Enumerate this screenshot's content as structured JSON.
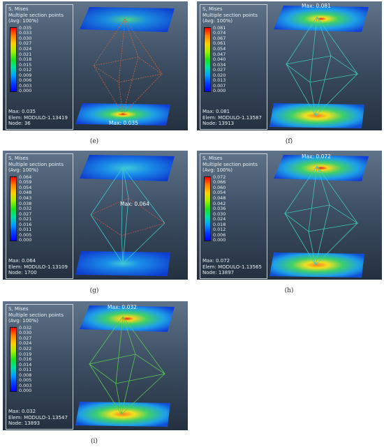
{
  "panels": [
    {
      "id": "e",
      "caption": "(e)",
      "legend": {
        "title": "S, Mises",
        "subtitle": "Multiple section points",
        "avg": "(Avg: 100%)",
        "values": [
          "0.035",
          "0.033",
          "0.030",
          "0.027",
          "0.024",
          "0.021",
          "0.018",
          "0.015",
          "0.012",
          "0.009",
          "0.006",
          "0.003",
          "0.000"
        ],
        "max": "Max: 0.035",
        "elem": "Elem: MODULO-1.13419",
        "node": "Node: 36"
      },
      "max_tag": "Max: 0.035",
      "wire_color": "#c8643c"
    },
    {
      "id": "f",
      "caption": "(f)",
      "legend": {
        "title": "S, Mises",
        "subtitle": "Multiple section points",
        "avg": "(Avg: 100%)",
        "values": [
          "0.081",
          "0.074",
          "0.067",
          "0.061",
          "0.054",
          "0.047",
          "0.040",
          "0.034",
          "0.027",
          "0.020",
          "0.013",
          "0.007",
          "0.000"
        ],
        "max": "Max: 0.081",
        "elem": "Elem: MODULO-1.13587",
        "node": "Node: 13913"
      },
      "max_tag": "Max: 0.081",
      "wire_color": "#3fc8b4"
    },
    {
      "id": "g",
      "caption": "(g)",
      "legend": {
        "title": "S, Mises",
        "subtitle": "Multiple section points",
        "avg": "(Avg: 100%)",
        "values": [
          "0.064",
          "0.059",
          "0.054",
          "0.048",
          "0.043",
          "0.038",
          "0.032",
          "0.027",
          "0.021",
          "0.016",
          "0.011",
          "0.005",
          "0.000"
        ],
        "max": "Max: 0.064",
        "elem": "Elem: MODULO-1.13109",
        "node": "Node: 1700"
      },
      "max_tag": "Max: 0.064",
      "wire_color": "#3fc8c8"
    },
    {
      "id": "h",
      "caption": "(h)",
      "legend": {
        "title": "S, Mises",
        "subtitle": "Multiple section points",
        "avg": "(Avg: 100%)",
        "values": [
          "0.072",
          "0.066",
          "0.060",
          "0.054",
          "0.048",
          "0.042",
          "0.036",
          "0.030",
          "0.024",
          "0.018",
          "0.012",
          "0.006",
          "0.000"
        ],
        "max": "Max: 0.072",
        "elem": "Elem: MODULO-1.13565",
        "node": "Node: 13897"
      },
      "max_tag": "Max: 0.072",
      "wire_color": "#3fc8b4"
    },
    {
      "id": "i",
      "caption": "(i)",
      "legend": {
        "title": "S, Mises",
        "subtitle": "Multiple section points",
        "avg": "(Avg: 100%)",
        "values": [
          "0.032",
          "0.030",
          "0.027",
          "0.024",
          "0.022",
          "0.019",
          "0.016",
          "0.014",
          "0.011",
          "0.008",
          "0.005",
          "0.003",
          "0.000"
        ],
        "max": "Max: 0.032",
        "elem": "Elem: MODULO-1.13547",
        "node": "Node: 13893"
      },
      "max_tag": "Max: 0.032",
      "wire_color": "#58c850"
    }
  ]
}
